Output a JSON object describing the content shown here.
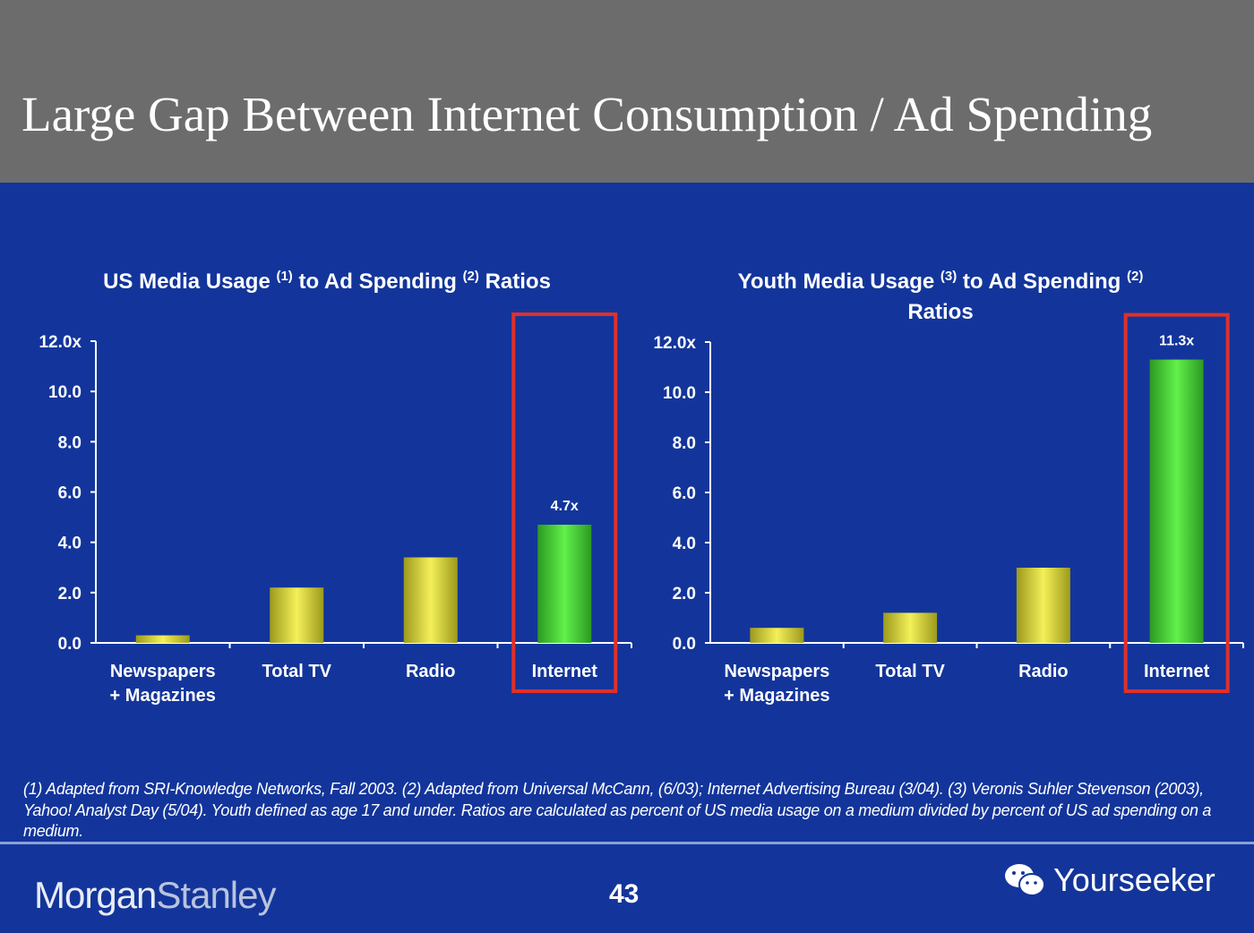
{
  "header": {
    "title": "Large Gap Between Internet Consumption / Ad Spending"
  },
  "colors": {
    "background": "#13359b",
    "header": "#6c6c6c",
    "bar": "#e8e23a",
    "highlight_bar": "#4fe03a",
    "highlight_box": "#e0302a"
  },
  "chart_data": [
    {
      "type": "bar",
      "title_parts": [
        "US Media Usage ",
        "(1)",
        " to Ad Spending ",
        "(2)",
        " Ratios"
      ],
      "categories": [
        [
          "Newspapers",
          "+ Magazines"
        ],
        [
          "Total TV"
        ],
        [
          "Radio"
        ],
        [
          "Internet"
        ]
      ],
      "values": [
        0.3,
        2.2,
        3.4,
        4.7
      ],
      "yticks": [
        "12.0x",
        "10.0",
        "8.0",
        "6.0",
        "4.0",
        "2.0",
        "0.0"
      ],
      "ylim": [
        0,
        12
      ],
      "highlight_index": 3,
      "data_labels": {
        "3": "4.7x"
      }
    },
    {
      "type": "bar",
      "title_parts": [
        "Youth Media Usage ",
        "(3)",
        " to Ad Spending ",
        "(2)",
        "Ratios"
      ],
      "categories": [
        [
          "Newspapers",
          "+ Magazines"
        ],
        [
          "Total TV"
        ],
        [
          "Radio"
        ],
        [
          "Internet"
        ]
      ],
      "values": [
        0.6,
        1.2,
        3.0,
        11.3
      ],
      "yticks": [
        "12.0x",
        "10.0",
        "8.0",
        "6.0",
        "4.0",
        "2.0",
        "0.0"
      ],
      "ylim": [
        0,
        12
      ],
      "highlight_index": 3,
      "data_labels": {
        "3": "11.3x"
      }
    }
  ],
  "footnote": "(1) Adapted from SRI-Knowledge Networks, Fall 2003.  (2) Adapted from Universal McCann, (6/03); Internet Advertising Bureau (3/04). (3) Veronis Suhler Stevenson (2003), Yahoo! Analyst Day (5/04).  Youth defined as age 17 and under.  Ratios are calculated as percent of US media usage on a medium divided by percent of US ad spending on a medium.",
  "footer": {
    "logo_part1": "Morgan",
    "logo_part2": "Stanley",
    "page_number": "43",
    "watermark": "Yourseeker",
    "watermark_icon": "wechat-icon"
  }
}
